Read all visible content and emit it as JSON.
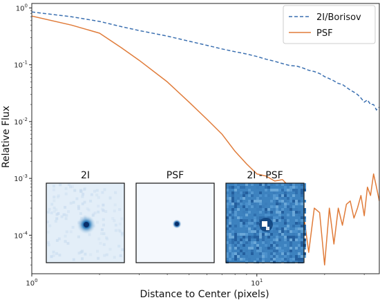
{
  "chart_data": {
    "type": "line",
    "xlabel": "Distance to Center (pixels)",
    "ylabel": "Relative Flux",
    "x_scale": "log",
    "y_scale": "log",
    "xlim": [
      1,
      35
    ],
    "ylim": [
      2.1e-05,
      1.2
    ],
    "grid": false,
    "legend_position": "top-right",
    "x_ticks": [
      {
        "value": 1,
        "label": "10^0"
      },
      {
        "value": 10,
        "label": "10^1"
      }
    ],
    "y_ticks": [
      {
        "value": 1,
        "label": "10^0"
      },
      {
        "value": 0.1,
        "label": "10^-1"
      },
      {
        "value": 0.01,
        "label": "10^-2"
      },
      {
        "value": 0.001,
        "label": "10^-3"
      },
      {
        "value": 0.0001,
        "label": "10^-4"
      }
    ],
    "series": [
      {
        "name": "2I/Borisov",
        "color": "#3a6fb0",
        "style": "dashed",
        "x": [
          1,
          1.5,
          2,
          2.5,
          3,
          4,
          5,
          6,
          7,
          8,
          9,
          10,
          11,
          12,
          13,
          14,
          15,
          16,
          17,
          18,
          19,
          20,
          21,
          22,
          23,
          24,
          25,
          26,
          27,
          28,
          29,
          30,
          31,
          32,
          33,
          34,
          35
        ],
        "y": [
          0.85,
          0.7,
          0.58,
          0.47,
          0.4,
          0.32,
          0.26,
          0.22,
          0.19,
          0.17,
          0.155,
          0.14,
          0.125,
          0.115,
          0.105,
          0.097,
          0.095,
          0.088,
          0.08,
          0.076,
          0.07,
          0.062,
          0.057,
          0.052,
          0.047,
          0.045,
          0.04,
          0.036,
          0.033,
          0.03,
          0.026,
          0.022,
          0.024,
          0.02,
          0.02,
          0.016,
          0.018
        ]
      },
      {
        "name": "PSF",
        "color": "#e07b39",
        "style": "solid",
        "x": [
          1,
          1.5,
          2,
          2.5,
          3,
          4,
          5,
          6,
          7,
          8,
          9,
          10,
          11,
          12,
          13,
          14,
          15,
          16,
          17,
          18,
          19,
          20,
          21,
          22,
          23,
          24,
          25,
          26,
          27,
          28,
          29,
          30,
          31,
          32,
          33,
          34,
          35
        ],
        "y": [
          0.72,
          0.5,
          0.36,
          0.2,
          0.12,
          0.05,
          0.022,
          0.011,
          0.006,
          0.003,
          0.0018,
          0.0012,
          0.0011,
          0.0009,
          0.00095,
          0.0007,
          0.00045,
          0.0003,
          5e-05,
          0.0003,
          0.00025,
          3e-05,
          0.0003,
          7e-05,
          0.0003,
          0.00015,
          0.00035,
          0.0004,
          0.0002,
          0.0003,
          0.0005,
          0.00022,
          0.0007,
          0.0005,
          0.0012,
          0.0007,
          0.0004
        ]
      }
    ]
  },
  "insets": [
    {
      "title": "2I"
    },
    {
      "title": "PSF"
    },
    {
      "title": "2I - PSF"
    }
  ]
}
